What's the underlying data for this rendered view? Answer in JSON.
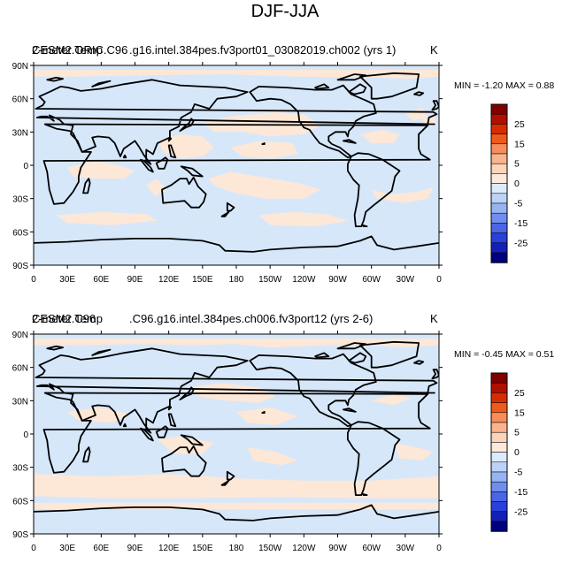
{
  "figure_title": "DJF-JJA",
  "panels": [
    {
      "overlap_title_a": "CESM2.ORIC.C96",
      "overlap_title_b": "2-meter Temp",
      "subtitle": ".g16.intel.384pes.fv3port01_03082019.ch002 (yrs 1)",
      "units": "K",
      "min_max": "MIN =  -1.20 MAX =   0.88"
    },
    {
      "overlap_title_a": "2-meter Temp",
      "overlap_title_b": "CESM2.C96",
      "subtitle": ".C96.g16.intel.384pes.ch006.fv3port12 (yrs 2-6)",
      "units": "K",
      "min_max": "MIN =  -0.45 MAX =   0.51"
    }
  ],
  "lat_labels": [
    "90N",
    "60N",
    "30N",
    "0",
    "30S",
    "60S",
    "90S"
  ],
  "lon_labels": [
    "0",
    "30E",
    "60E",
    "90E",
    "120E",
    "150E",
    "180",
    "150W",
    "120W",
    "90W",
    "60W",
    "30W",
    "0"
  ],
  "colorbar": {
    "labels": [
      "25",
      "15",
      "5",
      "0",
      "-5",
      "-15",
      "-25"
    ],
    "colors": [
      "#800000",
      "#b01000",
      "#d82c00",
      "#ef5a1c",
      "#f68d5a",
      "#f9b48e",
      "#fcd4b8",
      "#fde9dc",
      "#dcebfb",
      "#bcd3f7",
      "#96b4f2",
      "#6f8eed",
      "#4a66e6",
      "#2a40dc",
      "#1220b8",
      "#00007f"
    ]
  },
  "map_colors": {
    "ocean_positive": "#fde7d7",
    "ocean_negative": "#d6e7fa",
    "coast": "#000000"
  }
}
